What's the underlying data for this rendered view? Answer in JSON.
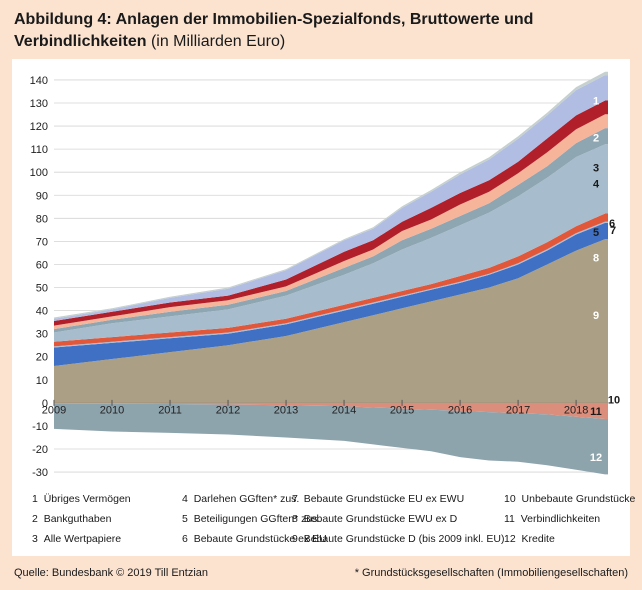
{
  "title": {
    "main": "Abbildung 4: Anlagen der Immobilien-Spezialfonds, Bruttowerte und Verbindlichkeiten",
    "unit": "(in Milliarden Euro)"
  },
  "legend": [
    {
      "num": "1",
      "label": "Übriges Vermögen"
    },
    {
      "num": "2",
      "label": "Bankguthaben"
    },
    {
      "num": "3",
      "label": "Alle Wertpapiere"
    },
    {
      "num": "4",
      "label": "Darlehen GGften* zus."
    },
    {
      "num": "5",
      "label": "Beteiligungen GGften* zus."
    },
    {
      "num": "6",
      "label": "Bebaute Grundstücke ex EU"
    },
    {
      "num": "7",
      "label": "Bebaute Grundstücke EU ex EWU"
    },
    {
      "num": "8",
      "label": "Bebaute Grundstücke EWU ex D"
    },
    {
      "num": "9",
      "label": "Bebaute Grundstücke D (bis 2009 inkl. EU)"
    },
    {
      "num": "10",
      "label": "Unbebaute Grundstücke"
    },
    {
      "num": "11",
      "label": "Verbindlichkeiten"
    },
    {
      "num": "12",
      "label": "Kredite"
    }
  ],
  "footer": {
    "source": "Quelle: Bundesbank © 2019 Till Entzian",
    "note": "* Grundstücksgesellschaften (Immobiliengesellschaften)"
  },
  "chart_data": {
    "type": "area",
    "stacked": true,
    "x": [
      2009.0,
      2010.0,
      2011.0,
      2012.0,
      2013.0,
      2014.0,
      2014.5,
      2015.0,
      2015.5,
      2016.0,
      2016.5,
      2017.0,
      2017.5,
      2018.0,
      2018.5
    ],
    "xticks": [
      "2009",
      "2010",
      "2011",
      "2012",
      "2013",
      "2014",
      "2015",
      "2016",
      "2017",
      "2018"
    ],
    "yticks": [
      -30,
      -20,
      -10,
      0,
      10,
      20,
      30,
      40,
      50,
      60,
      70,
      80,
      90,
      100,
      110,
      120,
      130,
      140
    ],
    "ylim": [
      -33,
      143
    ],
    "xlim": [
      2009.0,
      2018.55
    ],
    "grid": true,
    "series": [
      {
        "name": "9",
        "color": "#aba085",
        "values": [
          16,
          19,
          22,
          25,
          29,
          35,
          38,
          41,
          44,
          47,
          50,
          54,
          60,
          66,
          71
        ]
      },
      {
        "name": "8",
        "color": "#3f70c4",
        "values": [
          8,
          7,
          6,
          5,
          5,
          5,
          5,
          5,
          5,
          5,
          5.5,
          6,
          6,
          7,
          7
        ]
      },
      {
        "name": "7",
        "color": "#a9beda",
        "values": [
          0.5,
          0.5,
          0.5,
          0.5,
          0.5,
          0.5,
          0.5,
          0.5,
          0.5,
          0.5,
          0.5,
          0.5,
          0.6,
          0.6,
          0.6
        ]
      },
      {
        "name": "6",
        "color": "#e0573a",
        "values": [
          2,
          2,
          2,
          2,
          2,
          2,
          2,
          2,
          2,
          2.5,
          2.5,
          3,
          3,
          3,
          3.5
        ]
      },
      {
        "name": "5",
        "color": "#a7bccc",
        "values": [
          4,
          6,
          7,
          8,
          10,
          13,
          15,
          18,
          20,
          22,
          24,
          26,
          28,
          30,
          30
        ]
      },
      {
        "name": "4",
        "color": "#8ea6b2",
        "values": [
          1.5,
          1.5,
          2,
          2,
          2,
          3,
          3,
          4,
          4,
          4,
          4,
          5,
          5,
          6,
          7
        ]
      },
      {
        "name": "3",
        "color": "#f6b49b",
        "values": [
          1.5,
          1.5,
          2,
          2,
          2,
          3,
          3,
          4,
          4,
          5,
          5,
          5,
          6,
          6,
          6
        ]
      },
      {
        "name": "2",
        "color": "#b1202a",
        "values": [
          2,
          2,
          2,
          2,
          3,
          4,
          4,
          4,
          5,
          5,
          5,
          5,
          6,
          6,
          6
        ]
      },
      {
        "name": "1",
        "color": "#b1bde2",
        "values": [
          1,
          1,
          2,
          3,
          4,
          5,
          5,
          6,
          7,
          8,
          9,
          10,
          10,
          11,
          11
        ]
      },
      {
        "name": "10",
        "color": "#c6d1cf",
        "values": [
          0.5,
          0.5,
          0.5,
          0.5,
          0.5,
          0.5,
          0.6,
          0.7,
          0.8,
          0.9,
          1,
          1.1,
          1.2,
          1.3,
          1.4
        ]
      },
      {
        "name": "11",
        "color": "#dc8e7c",
        "values": [
          -0.3,
          -0.4,
          -0.5,
          -0.7,
          -1.0,
          -1.5,
          -2.0,
          -2.5,
          -3.0,
          -3.5,
          -4.0,
          -4.5,
          -5.0,
          -6.0,
          -7.0
        ]
      },
      {
        "name": "12",
        "color": "#8ea4ad",
        "values": [
          -11,
          -12,
          -12.5,
          -13,
          -14,
          -15,
          -16,
          -17,
          -18,
          -20,
          -21,
          -21,
          -22,
          -23,
          -24
        ]
      }
    ]
  }
}
